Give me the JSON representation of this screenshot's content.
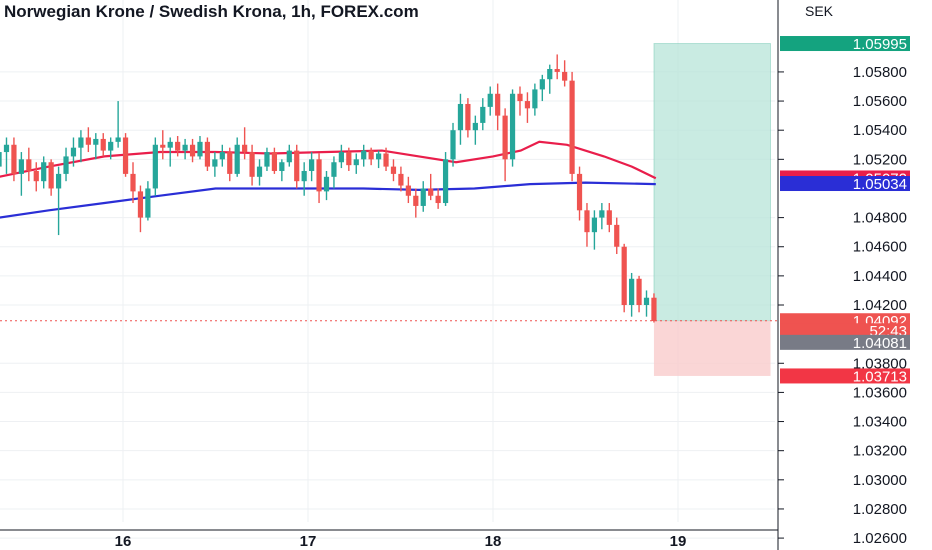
{
  "title": "Norwegian Krone / Swedish Krona, 1h, FOREX.com",
  "currency_label": "SEK",
  "colors": {
    "up": "#26a69a",
    "down": "#ef5350",
    "ma_fast": "#e91e4b",
    "ma_slow": "#2a2ed6",
    "grid": "#eef0f3",
    "profit_zone": "#b7e4d8",
    "loss_zone": "#f9cccc",
    "current_line": "#ef5350"
  },
  "badges": {
    "target": {
      "label": "1.05995",
      "color": "#14a37f"
    },
    "ma_fast": {
      "label": "1.05072",
      "color": "#e91e4b"
    },
    "ma_slow": {
      "label": "1.05034",
      "color": "#2a2ed6"
    },
    "price": {
      "label": "1.04092",
      "color": "#ef5350"
    },
    "countdown": {
      "label": "52:43",
      "color": "#ef5350"
    },
    "bid": {
      "label": "1.04081",
      "color": "#787b86"
    },
    "stop": {
      "label": "1.03713",
      "color": "#f23645"
    }
  },
  "chart_data": {
    "type": "candlestick",
    "title": "Norwegian Krone / Swedish Krona, 1h, FOREX.com",
    "ylabel": "SEK",
    "ylim": [
      1.0258,
      1.0628
    ],
    "y_ticks": [
      "1.05800",
      "1.05600",
      "1.05400",
      "1.05200",
      "1.04800",
      "1.04600",
      "1.04400",
      "1.04200",
      "1.03800",
      "1.03600",
      "1.03400",
      "1.03200",
      "1.03000",
      "1.02800",
      "1.02600"
    ],
    "x_ticks": [
      "16",
      "17",
      "18",
      "19"
    ],
    "grid": true,
    "candles_start_day": 15.33,
    "candle_hours": 1,
    "ohlc": [
      [
        1.0515,
        1.0532,
        1.05,
        1.0525
      ],
      [
        1.0525,
        1.0535,
        1.051,
        1.053
      ],
      [
        1.053,
        1.0535,
        1.0505,
        1.051
      ],
      [
        1.051,
        1.0525,
        1.0495,
        1.052
      ],
      [
        1.052,
        1.0528,
        1.0505,
        1.0512
      ],
      [
        1.0512,
        1.0518,
        1.0498,
        1.0505
      ],
      [
        1.0505,
        1.0522,
        1.05,
        1.0518
      ],
      [
        1.0518,
        1.052,
        1.0495,
        1.05
      ],
      [
        1.05,
        1.0515,
        1.0468,
        1.051
      ],
      [
        1.051,
        1.0528,
        1.0505,
        1.0522
      ],
      [
        1.0522,
        1.0535,
        1.0515,
        1.0528
      ],
      [
        1.0528,
        1.054,
        1.0518,
        1.0535
      ],
      [
        1.0535,
        1.0542,
        1.0525,
        1.053
      ],
      [
        1.053,
        1.0538,
        1.052,
        1.0534
      ],
      [
        1.0534,
        1.0538,
        1.0522,
        1.0526
      ],
      [
        1.0526,
        1.0535,
        1.052,
        1.0532
      ],
      [
        1.0532,
        1.056,
        1.0528,
        1.0535
      ],
      [
        1.0535,
        1.0538,
        1.0508,
        1.051
      ],
      [
        1.051,
        1.0518,
        1.049,
        1.0498
      ],
      [
        1.0498,
        1.0502,
        1.047,
        1.048
      ],
      [
        1.048,
        1.0505,
        1.0478,
        1.05
      ],
      [
        1.05,
        1.0535,
        1.0495,
        1.053
      ],
      [
        1.053,
        1.054,
        1.052,
        1.0528
      ],
      [
        1.0528,
        1.0535,
        1.0515,
        1.0532
      ],
      [
        1.0532,
        1.0536,
        1.0522,
        1.0526
      ],
      [
        1.0526,
        1.0534,
        1.052,
        1.053
      ],
      [
        1.053,
        1.0534,
        1.0518,
        1.0522
      ],
      [
        1.0522,
        1.0536,
        1.052,
        1.0532
      ],
      [
        1.0532,
        1.0535,
        1.0512,
        1.0515
      ],
      [
        1.0515,
        1.0525,
        1.0508,
        1.052
      ],
      [
        1.052,
        1.053,
        1.0515,
        1.0525
      ],
      [
        1.0525,
        1.0528,
        1.0505,
        1.051
      ],
      [
        1.051,
        1.0535,
        1.0508,
        1.053
      ],
      [
        1.053,
        1.0542,
        1.052,
        1.0525
      ],
      [
        1.0525,
        1.053,
        1.0502,
        1.0508
      ],
      [
        1.0508,
        1.052,
        1.0502,
        1.0515
      ],
      [
        1.0515,
        1.0528,
        1.0512,
        1.0525
      ],
      [
        1.0525,
        1.0528,
        1.051,
        1.0512
      ],
      [
        1.0512,
        1.052,
        1.0505,
        1.0518
      ],
      [
        1.0518,
        1.053,
        1.0515,
        1.0526
      ],
      [
        1.0526,
        1.053,
        1.05,
        1.0505
      ],
      [
        1.0505,
        1.0518,
        1.0495,
        1.0512
      ],
      [
        1.0512,
        1.0525,
        1.0505,
        1.052
      ],
      [
        1.052,
        1.0524,
        1.049,
        1.0498
      ],
      [
        1.0498,
        1.0512,
        1.0492,
        1.0508
      ],
      [
        1.0508,
        1.0522,
        1.05,
        1.0518
      ],
      [
        1.0518,
        1.053,
        1.0514,
        1.0525
      ],
      [
        1.0525,
        1.0528,
        1.0512,
        1.0516
      ],
      [
        1.0516,
        1.0524,
        1.051,
        1.052
      ],
      [
        1.052,
        1.053,
        1.0515,
        1.0526
      ],
      [
        1.0526,
        1.0528,
        1.0516,
        1.052
      ],
      [
        1.052,
        1.0526,
        1.0514,
        1.0524
      ],
      [
        1.0524,
        1.0528,
        1.0512,
        1.0515
      ],
      [
        1.0515,
        1.052,
        1.0505,
        1.051
      ],
      [
        1.051,
        1.0515,
        1.0498,
        1.0502
      ],
      [
        1.0502,
        1.0508,
        1.049,
        1.0495
      ],
      [
        1.0495,
        1.05,
        1.048,
        1.0488
      ],
      [
        1.0488,
        1.0505,
        1.0484,
        1.05
      ],
      [
        1.05,
        1.051,
        1.0492,
        1.0495
      ],
      [
        1.0495,
        1.05,
        1.0486,
        1.049
      ],
      [
        1.049,
        1.0525,
        1.0488,
        1.052
      ],
      [
        1.052,
        1.0545,
        1.0515,
        1.054
      ],
      [
        1.054,
        1.0565,
        1.053,
        1.0558
      ],
      [
        1.0558,
        1.0562,
        1.0535,
        1.054
      ],
      [
        1.054,
        1.055,
        1.053,
        1.0545
      ],
      [
        1.0545,
        1.0562,
        1.054,
        1.0556
      ],
      [
        1.0556,
        1.057,
        1.055,
        1.0565
      ],
      [
        1.0565,
        1.0572,
        1.054,
        1.055
      ],
      [
        1.055,
        1.0555,
        1.0505,
        1.052
      ],
      [
        1.052,
        1.0568,
        1.0515,
        1.0565
      ],
      [
        1.0565,
        1.057,
        1.055,
        1.056
      ],
      [
        1.056,
        1.0566,
        1.0545,
        1.0555
      ],
      [
        1.0555,
        1.0572,
        1.055,
        1.0568
      ],
      [
        1.0568,
        1.0578,
        1.056,
        1.0575
      ],
      [
        1.0575,
        1.0585,
        1.0565,
        1.0582
      ],
      [
        1.0582,
        1.0592,
        1.0575,
        1.058
      ],
      [
        1.058,
        1.0588,
        1.057,
        1.0574
      ],
      [
        1.0574,
        1.058,
        1.0505,
        1.051
      ],
      [
        1.051,
        1.0515,
        1.0478,
        1.0485
      ],
      [
        1.0485,
        1.049,
        1.046,
        1.047
      ],
      [
        1.047,
        1.0485,
        1.0458,
        1.048
      ],
      [
        1.048,
        1.049,
        1.0472,
        1.0485
      ],
      [
        1.0485,
        1.049,
        1.047,
        1.0475
      ],
      [
        1.0475,
        1.048,
        1.0455,
        1.046
      ],
      [
        1.046,
        1.0462,
        1.0415,
        1.042
      ],
      [
        1.042,
        1.0442,
        1.0412,
        1.0438
      ],
      [
        1.0438,
        1.044,
        1.0415,
        1.042
      ],
      [
        1.042,
        1.043,
        1.0412,
        1.0425
      ],
      [
        1.0425,
        1.0428,
        1.0408,
        1.0409
      ]
    ],
    "series": [
      {
        "name": "",
        "type": "line",
        "x": [
          15.33,
          15.6,
          15.9,
          16.2,
          16.5,
          16.8,
          17.1,
          17.4,
          17.6,
          17.8,
          18.0,
          18.15,
          18.25,
          18.4,
          18.6,
          18.75,
          18.88
        ],
        "y": [
          1.0508,
          1.0515,
          1.0522,
          1.0525,
          1.0525,
          1.0524,
          1.0525,
          1.0526,
          1.0522,
          1.0518,
          1.0522,
          1.0526,
          1.0532,
          1.053,
          1.0522,
          1.0515,
          1.0507
        ]
      },
      {
        "name": "",
        "type": "line",
        "x": [
          15.33,
          15.6,
          15.9,
          16.2,
          16.5,
          16.8,
          17.0,
          17.3,
          17.6,
          17.9,
          18.2,
          18.5,
          18.88
        ],
        "y": [
          1.048,
          1.0485,
          1.049,
          1.0495,
          1.05,
          1.05,
          1.05,
          1.05,
          1.0499,
          1.05,
          1.0503,
          1.0504,
          1.0503
        ]
      }
    ],
    "position": {
      "entry": 1.04092,
      "target": 1.05995,
      "stop": 1.03713,
      "x_start": 18.87,
      "x_end": 19.5
    }
  }
}
